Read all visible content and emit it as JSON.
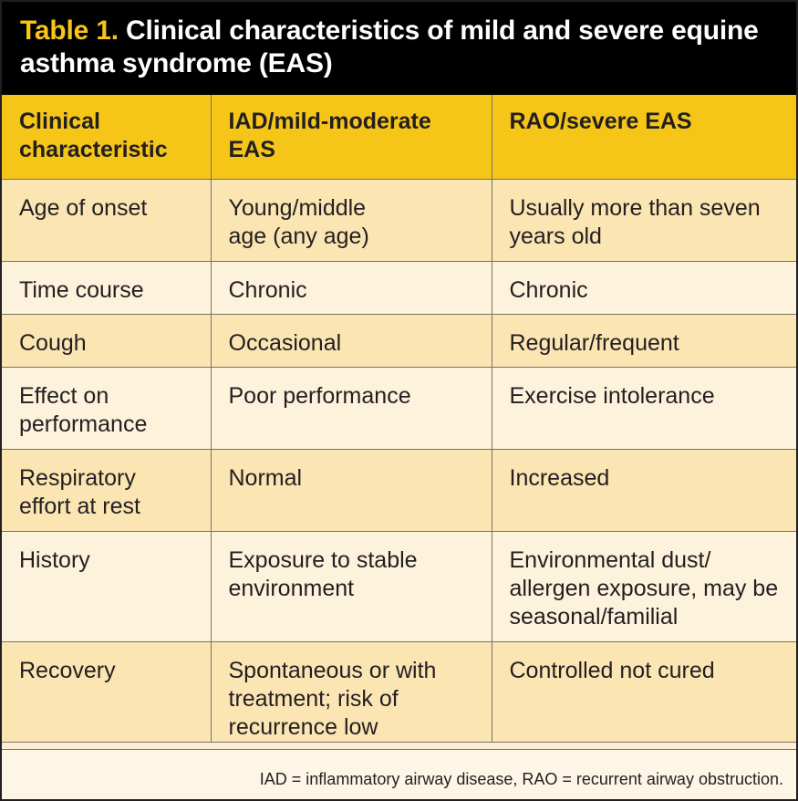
{
  "table": {
    "label": "Table 1.",
    "title": "Clinical characteristics of mild and severe equine asthma syndrome (EAS)",
    "headers": [
      "Clinical characteristic",
      "IAD/mild-moderate EAS",
      "RAO/severe EAS"
    ],
    "rows": [
      [
        "Age of onset",
        "Young/middle age (any age)",
        "Usually more than seven years old"
      ],
      [
        "Time course",
        "Chronic",
        "Chronic"
      ],
      [
        "Cough",
        "Occasional",
        "Regular/frequent"
      ],
      [
        "Effect on performance",
        "Poor performance",
        "Exercise intolerance"
      ],
      [
        "Respiratory effort at rest",
        "Normal",
        "Increased"
      ],
      [
        "History",
        "Exposure to stable environment",
        "Environmental dust/ allergen exposure, may be seasonal/familial"
      ],
      [
        "Recovery",
        "Spontaneous or with treatment; risk of recurrence low",
        "Controlled not cured"
      ]
    ],
    "footnote": "IAD = inflammatory airway disease, RAO = recurrent airway obstruction."
  },
  "colors": {
    "title_background": "#000000",
    "title_label": "#f5c518",
    "header_background": "#f5c518",
    "row_odd": "#fbe5b3",
    "row_even": "#fdf2dc"
  }
}
